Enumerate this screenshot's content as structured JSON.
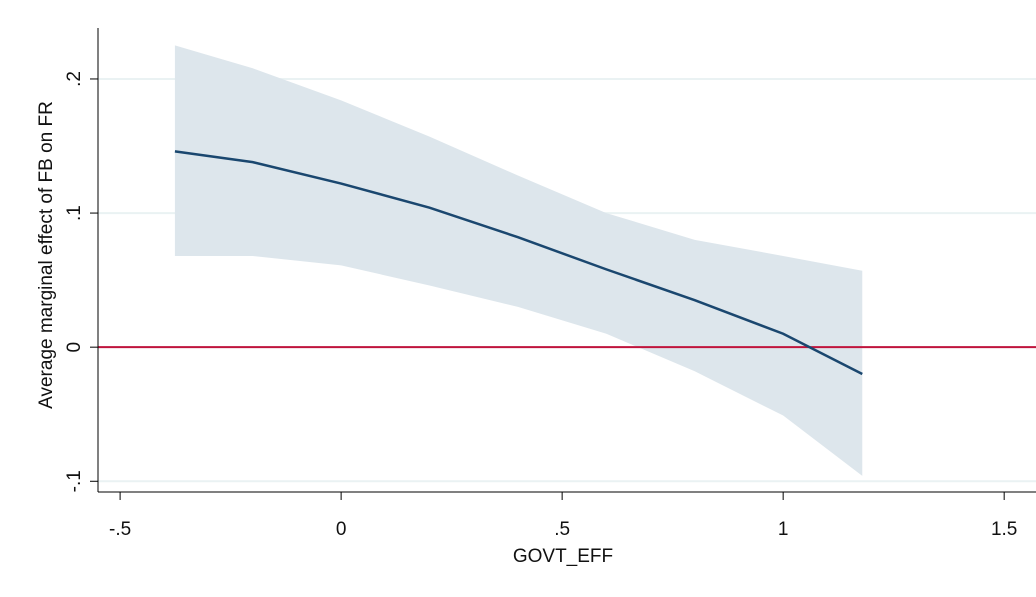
{
  "chart_data": {
    "type": "line",
    "x_label": "GOVT_EFF",
    "y_label": "Average marginal effect of FB on FR",
    "x": [
      -0.376,
      -0.2,
      0,
      0.2,
      0.4,
      0.6,
      0.8,
      1.0,
      1.179
    ],
    "values": [
      0.146,
      0.138,
      0.122,
      0.104,
      0.082,
      0.058,
      0.035,
      0.01,
      -0.02
    ],
    "ci_upper": [
      0.225,
      0.208,
      0.184,
      0.157,
      0.128,
      0.1,
      0.08,
      0.068,
      0.057
    ],
    "ci_lower": [
      0.068,
      0.068,
      0.061,
      0.046,
      0.03,
      0.01,
      -0.018,
      -0.051,
      -0.096
    ],
    "color": "#1a476f",
    "ci_color": "#dde6ec",
    "yline": {
      "value": 0,
      "color": "#c0143c"
    },
    "xlim": [
      -0.55,
      1.572
    ],
    "ylim": [
      -0.108,
      0.238
    ],
    "xticks": [
      {
        "value": -0.5,
        "label": "-.5"
      },
      0,
      {
        "value": 0.5,
        "label": ".5"
      },
      1,
      1.5
    ],
    "yticks": [
      {
        "value": -0.1,
        "label": "-.1"
      },
      0,
      {
        "value": 0.1,
        "label": ".1"
      },
      {
        "value": 0.2,
        "label": ".2"
      }
    ],
    "grid": true
  }
}
